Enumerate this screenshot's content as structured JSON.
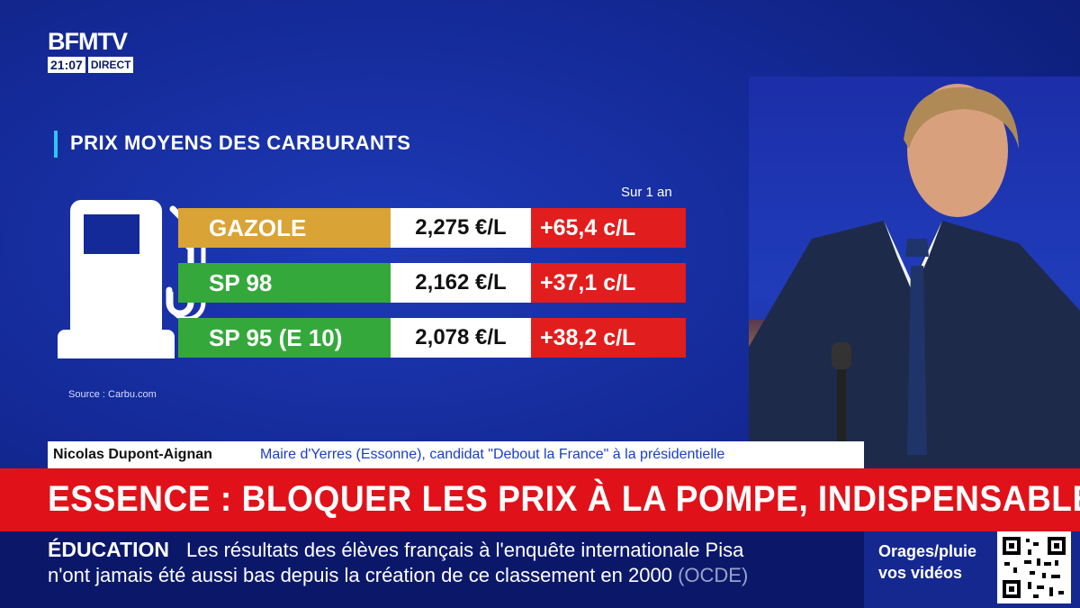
{
  "channel": {
    "name": "BFMTV",
    "time": "21:07",
    "live_label": "DIRECT"
  },
  "graphic": {
    "title": "PRIX MOYENS DES CARBURANTS",
    "period": "Sur 1 an",
    "source": "Source : Carbu.com",
    "rows": [
      {
        "name": "GAZOLE",
        "price": "2,275 €/L",
        "delta": "+65,4 c/L",
        "color": "#d9a336"
      },
      {
        "name": "SP 98",
        "price": "2,162 €/L",
        "delta": "+37,1 c/L",
        "color": "#35a83c"
      },
      {
        "name": "SP 95 (E 10)",
        "price": "2,078 €/L",
        "delta": "+38,2 c/L",
        "color": "#35a83c"
      }
    ]
  },
  "lower_third": {
    "person": "Nicolas Dupont-Aignan",
    "role": "Maire d'Yerres (Essonne), candidat \"Debout la France\" à la présidentielle"
  },
  "headline": "ESSENCE : BLOQUER LES PRIX À LA POMPE, INDISPENSABLE ?",
  "ticker": {
    "category": "ÉDUCATION",
    "line1": "Les résultats des élèves français à l'enquête internationale Pisa",
    "line2": "n'ont jamais été aussi bas depuis la création de ce classement en 2000",
    "source": "(OCDE)"
  },
  "promo": {
    "line1": "Orages/pluie",
    "line2": "vos vidéos"
  },
  "colors": {
    "background": "#142a98",
    "headline_red": "#e1111a",
    "delta_red": "#e11d1d",
    "accent_cyan": "#2ec5ff"
  }
}
